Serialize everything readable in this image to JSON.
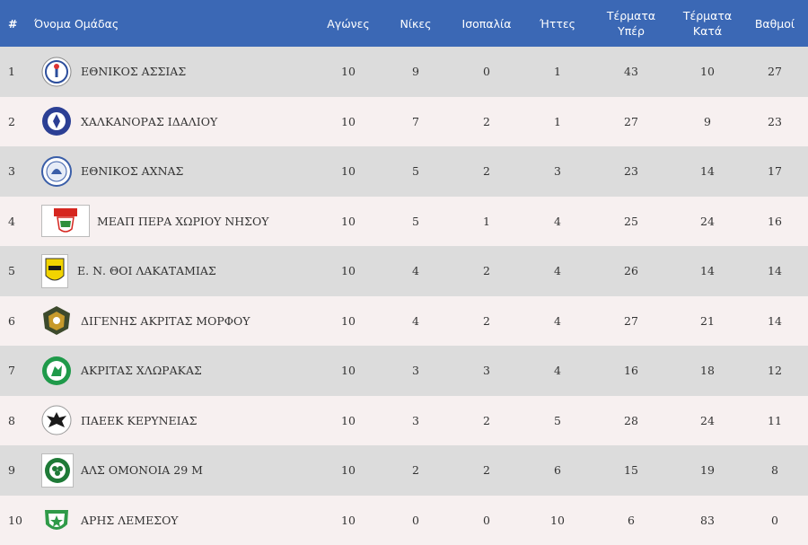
{
  "columns": {
    "rank": "#",
    "team": "Όνομα Ομάδας",
    "played": "Αγώνες",
    "wins": "Νίκες",
    "draws": "Ισοπαλία",
    "losses": "Ήττες",
    "goals_for": [
      "Τέρματα",
      "Υπέρ"
    ],
    "goals_against": [
      "Τέρματα",
      "Κατά"
    ],
    "points": "Βαθμοί"
  },
  "colors": {
    "header_bg": "#3b68b5",
    "row_odd": "#dcdcdc",
    "row_even": "#f7f0f0"
  },
  "rows": [
    {
      "rank": "1",
      "team": "ΕΘΝΙΚΟΣ ΑΣΣΙΑΣ",
      "played": "10",
      "wins": "9",
      "draws": "0",
      "losses": "1",
      "goals_for": "43",
      "goals_against": "10",
      "points": "27",
      "logo": "ethnikos-assias-logo"
    },
    {
      "rank": "2",
      "team": "ΧΑΛΚΑΝΟΡΑΣ ΙΔΑΛΙΟΥ",
      "played": "10",
      "wins": "7",
      "draws": "2",
      "losses": "1",
      "goals_for": "27",
      "goals_against": "9",
      "points": "23",
      "logo": "chalkanoras-logo"
    },
    {
      "rank": "3",
      "team": "ΕΘΝΙΚΟΣ ΑΧΝΑΣ",
      "played": "10",
      "wins": "5",
      "draws": "2",
      "losses": "3",
      "goals_for": "23",
      "goals_against": "14",
      "points": "17",
      "logo": "ethnikos-achnas-logo"
    },
    {
      "rank": "4",
      "team": "ΜΕΑΠ ΠΕΡΑ ΧΩΡΙΟΥ ΝΗΣΟΥ",
      "played": "10",
      "wins": "5",
      "draws": "1",
      "losses": "4",
      "goals_for": "25",
      "goals_against": "24",
      "points": "16",
      "logo": "meap-logo"
    },
    {
      "rank": "5",
      "team": "Ε. Ν. ΘΟΙ ΛΑΚΑΤΑΜΙΑΣ",
      "played": "10",
      "wins": "4",
      "draws": "2",
      "losses": "4",
      "goals_for": "26",
      "goals_against": "14",
      "points": "14",
      "logo": "thoi-logo"
    },
    {
      "rank": "6",
      "team": "ΔΙΓΕΝΗΣ ΑΚΡΙΤΑΣ ΜΟΡΦΟΥ",
      "played": "10",
      "wins": "4",
      "draws": "2",
      "losses": "4",
      "goals_for": "27",
      "goals_against": "21",
      "points": "14",
      "logo": "digenis-logo"
    },
    {
      "rank": "7",
      "team": "ΑΚΡΙΤΑΣ ΧΛΩΡΑΚΑΣ",
      "played": "10",
      "wins": "3",
      "draws": "3",
      "losses": "4",
      "goals_for": "16",
      "goals_against": "18",
      "points": "12",
      "logo": "akritas-logo"
    },
    {
      "rank": "8",
      "team": "ΠΑΕΕΚ ΚΕΡΥΝΕΙΑΣ",
      "played": "10",
      "wins": "3",
      "draws": "2",
      "losses": "5",
      "goals_for": "28",
      "goals_against": "24",
      "points": "11",
      "logo": "paeek-logo"
    },
    {
      "rank": "9",
      "team": "ΑΛΣ ΟΜΟΝΟΙΑ 29 Μ",
      "played": "10",
      "wins": "2",
      "draws": "2",
      "losses": "6",
      "goals_for": "15",
      "goals_against": "19",
      "points": "8",
      "logo": "omonoia-logo"
    },
    {
      "rank": "10",
      "team": "ΑΡΗΣ ΛΕΜΕΣΟΥ",
      "played": "10",
      "wins": "0",
      "draws": "0",
      "losses": "10",
      "goals_for": "6",
      "goals_against": "83",
      "points": "0",
      "logo": "aris-logo"
    }
  ]
}
